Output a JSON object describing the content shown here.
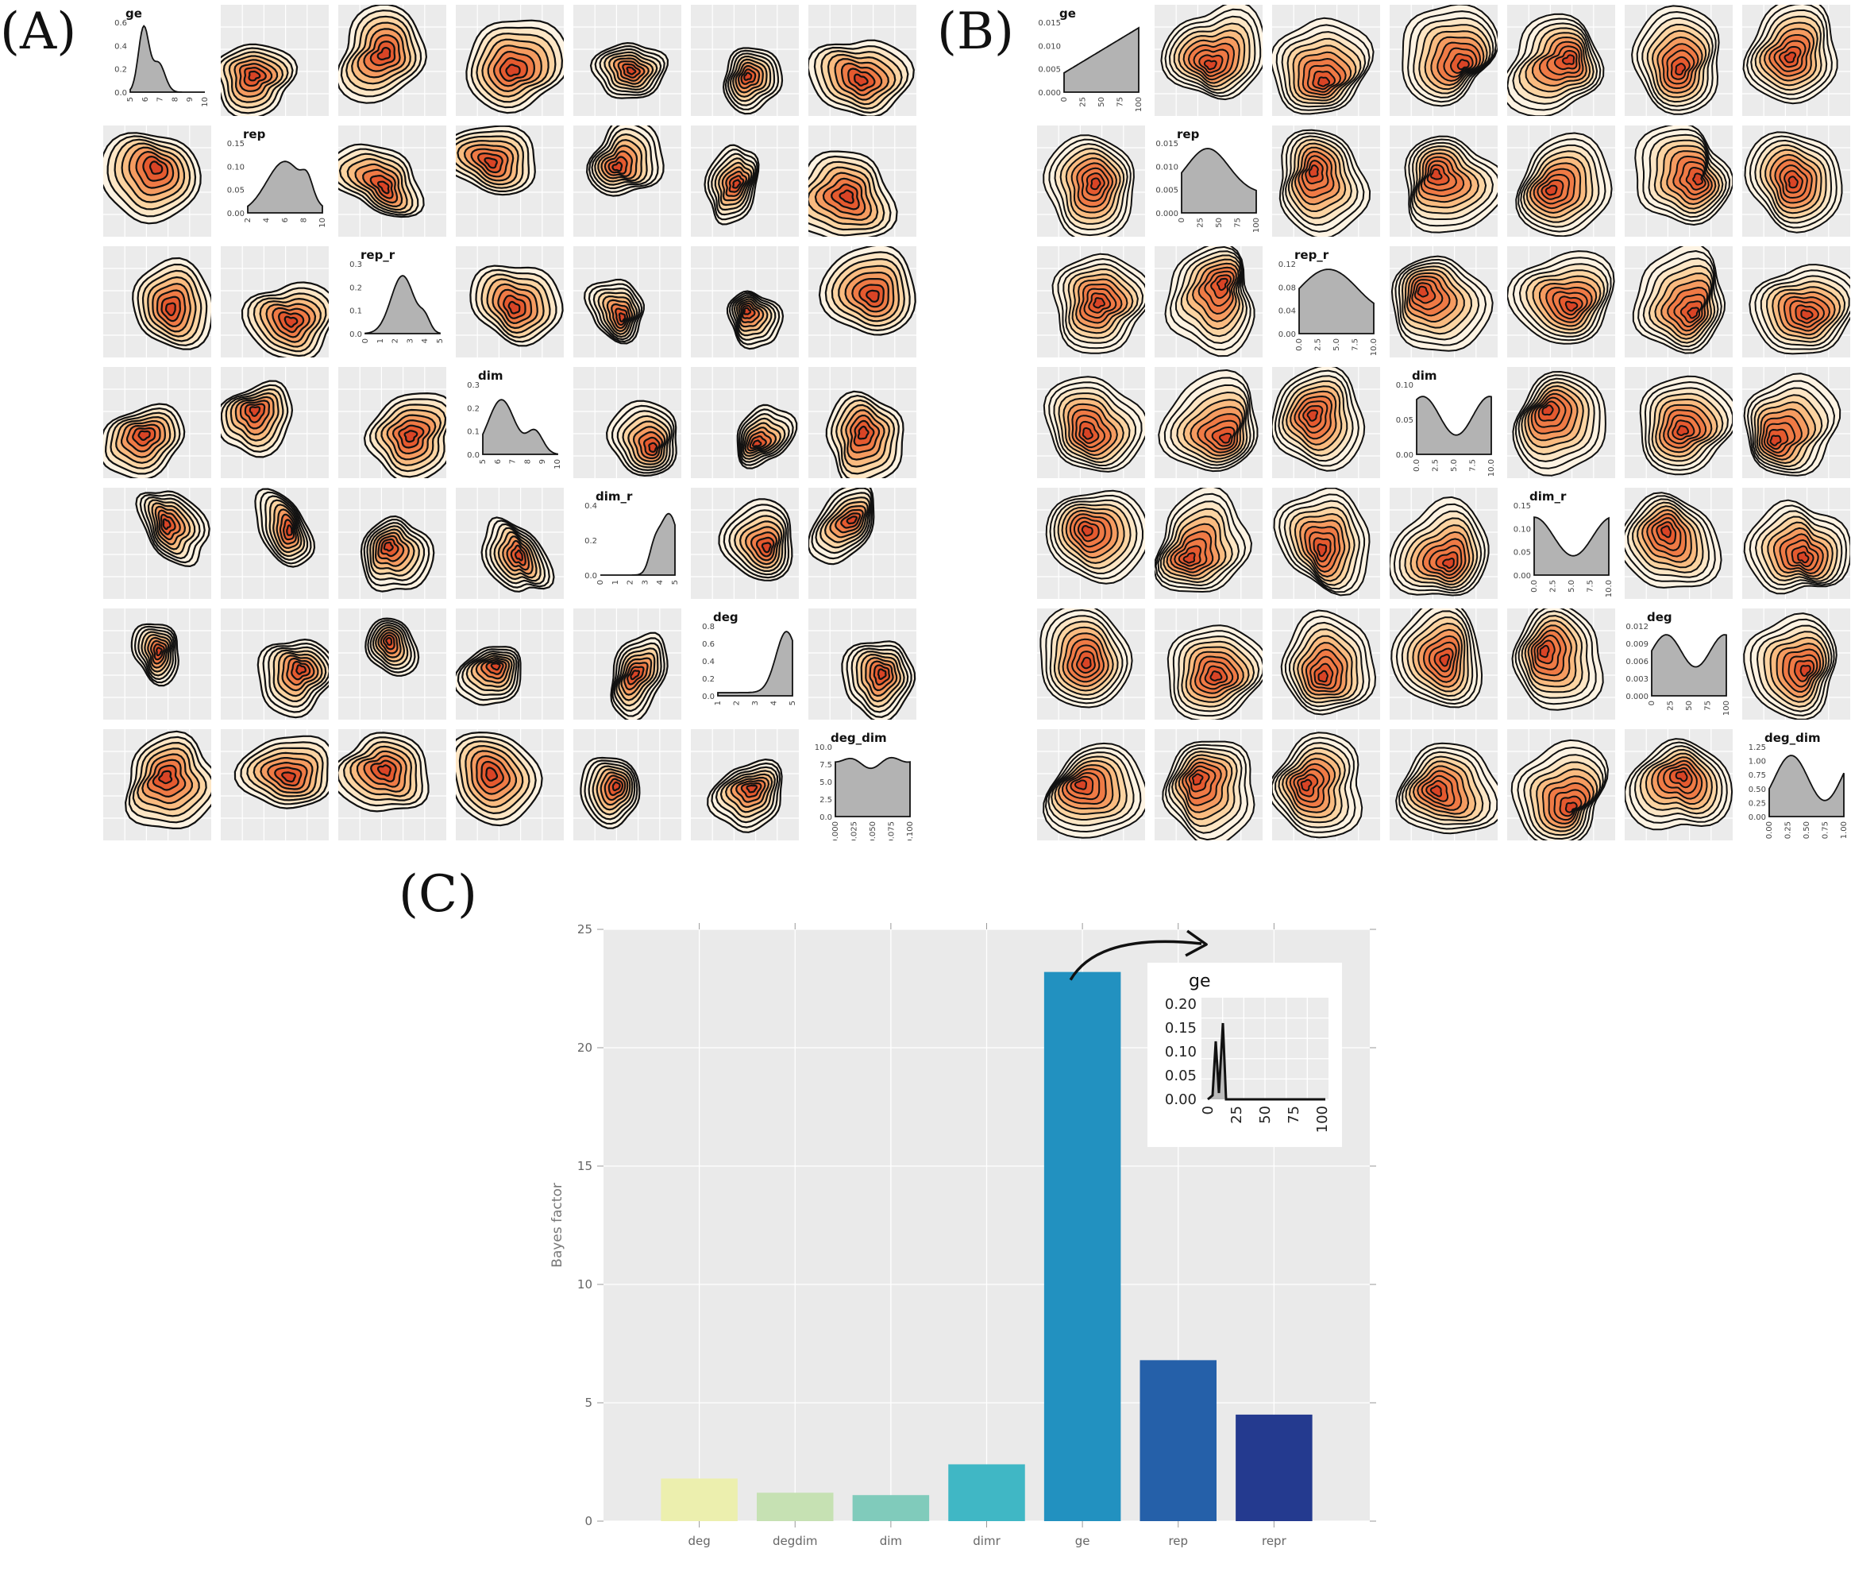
{
  "labels": {
    "a": "(A)",
    "b": "(B)",
    "c": "(C)"
  },
  "matrix_a": {
    "vars": [
      {
        "name": "ge",
        "yticks": [
          "0.6",
          "0.4",
          "0.2",
          "0.0"
        ],
        "xticks": [
          "5",
          "6",
          "7",
          "8",
          "9",
          "10"
        ]
      },
      {
        "name": "rep",
        "yticks": [
          "0.15",
          "0.10",
          "0.05",
          "0.00"
        ],
        "xticks": [
          "2",
          "4",
          "6",
          "8",
          "10"
        ]
      },
      {
        "name": "rep_r",
        "yticks": [
          "0.3",
          "0.2",
          "0.1",
          "0.0"
        ],
        "xticks": [
          "0",
          "1",
          "2",
          "3",
          "4",
          "5"
        ]
      },
      {
        "name": "dim",
        "yticks": [
          "0.3",
          "0.2",
          "0.1",
          "0.0"
        ],
        "xticks": [
          "5",
          "6",
          "7",
          "8",
          "9",
          "10"
        ]
      },
      {
        "name": "dim_r",
        "yticks": [
          "0.4",
          "0.2",
          "0.0"
        ],
        "xticks": [
          "0",
          "1",
          "2",
          "3",
          "4",
          "5"
        ]
      },
      {
        "name": "deg",
        "yticks": [
          "0.8",
          "0.6",
          "0.4",
          "0.2",
          "0.0"
        ],
        "xticks": [
          "1",
          "2",
          "3",
          "4",
          "5"
        ]
      },
      {
        "name": "deg_dim",
        "yticks": [
          "10.0",
          "7.5",
          "5.0",
          "2.5",
          "0.0"
        ],
        "xticks": [
          "0.000",
          "0.025",
          "0.050",
          "0.075",
          "0.100"
        ]
      }
    ]
  },
  "matrix_b": {
    "vars": [
      {
        "name": "ge",
        "yticks": [
          "0.015",
          "0.010",
          "0.005",
          "0.000"
        ],
        "xticks": [
          "0",
          "25",
          "50",
          "75",
          "100"
        ]
      },
      {
        "name": "rep",
        "yticks": [
          "0.015",
          "0.010",
          "0.005",
          "0.000"
        ],
        "xticks": [
          "0",
          "25",
          "50",
          "75",
          "100"
        ]
      },
      {
        "name": "rep_r",
        "yticks": [
          "0.12",
          "0.08",
          "0.04",
          "0.00"
        ],
        "xticks": [
          "0.0",
          "2.5",
          "5.0",
          "7.5",
          "10.0"
        ]
      },
      {
        "name": "dim",
        "yticks": [
          "0.10",
          "0.05",
          "0.00"
        ],
        "xticks": [
          "0.0",
          "2.5",
          "5.0",
          "7.5",
          "10.0"
        ]
      },
      {
        "name": "dim_r",
        "yticks": [
          "0.15",
          "0.10",
          "0.05",
          "0.00"
        ],
        "xticks": [
          "0.0",
          "2.5",
          "5.0",
          "7.5",
          "10.0"
        ]
      },
      {
        "name": "deg",
        "yticks": [
          "0.012",
          "0.009",
          "0.006",
          "0.003",
          "0.000"
        ],
        "xticks": [
          "0",
          "25",
          "50",
          "75",
          "100"
        ]
      },
      {
        "name": "deg_dim",
        "yticks": [
          "1.25",
          "1.00",
          "0.75",
          "0.50",
          "0.25",
          "0.00"
        ],
        "xticks": [
          "0.00",
          "0.25",
          "0.50",
          "0.75",
          "1.00"
        ]
      }
    ]
  },
  "chart_data": {
    "type": "bar",
    "categories": [
      "deg",
      "degdim",
      "dim",
      "dimr",
      "ge",
      "rep",
      "repr"
    ],
    "values": [
      1.8,
      1.2,
      1.1,
      2.4,
      23.2,
      6.8,
      4.5
    ],
    "colors": [
      "#ecefae",
      "#c6e1b3",
      "#80cbbb",
      "#40b7c5",
      "#2291c0",
      "#2560a9",
      "#243a8f"
    ],
    "ylabel": "Bayes factor",
    "xlabel": "",
    "ylim": [
      0,
      25
    ],
    "yticks": [
      0,
      5,
      10,
      15,
      20,
      25
    ],
    "grid": true,
    "inset": {
      "title": "ge",
      "yticks": [
        "0.20",
        "0.15",
        "0.10",
        "0.05",
        "0.00"
      ],
      "xticks": [
        "0",
        "25",
        "50",
        "75",
        "100"
      ],
      "xlim": [
        0,
        100
      ],
      "ylim": [
        0,
        0.25
      ]
    }
  }
}
